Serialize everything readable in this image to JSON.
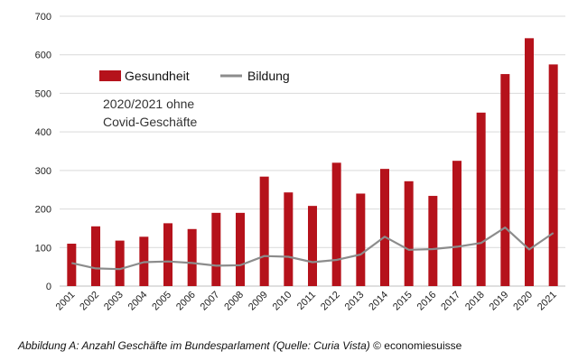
{
  "chart_data": {
    "type": "bar",
    "categories": [
      "2001",
      "2002",
      "2003",
      "2004",
      "2005",
      "2006",
      "2007",
      "2008",
      "2009",
      "2010",
      "2011",
      "2012",
      "2013",
      "2014",
      "2015",
      "2016",
      "2017",
      "2018",
      "2019",
      "2020",
      "2021"
    ],
    "series": [
      {
        "name": "Gesundheit",
        "type": "bar",
        "color": "#b5121b",
        "values": [
          110,
          155,
          118,
          128,
          163,
          148,
          190,
          190,
          284,
          243,
          208,
          320,
          240,
          304,
          272,
          234,
          325,
          450,
          550,
          643,
          575
        ]
      },
      {
        "name": "Bildung",
        "type": "line",
        "color": "#8c8c8c",
        "values": [
          60,
          46,
          44,
          62,
          64,
          60,
          53,
          54,
          78,
          76,
          62,
          68,
          82,
          128,
          94,
          96,
          102,
          112,
          152,
          95,
          138
        ]
      }
    ],
    "ylim": [
      0,
      700
    ],
    "yticks": [
      0,
      100,
      200,
      300,
      400,
      500,
      600,
      700
    ],
    "grid": "y",
    "legend_position": "top-left",
    "annotation": [
      "2020/2021 ohne",
      "Covid-Geschäfte"
    ]
  },
  "caption": {
    "italic": "Abbildung A: Anzahl Geschäfte im Bundesparlament (Quelle: Curia Vista) ",
    "plain": "© economiesuisse"
  }
}
